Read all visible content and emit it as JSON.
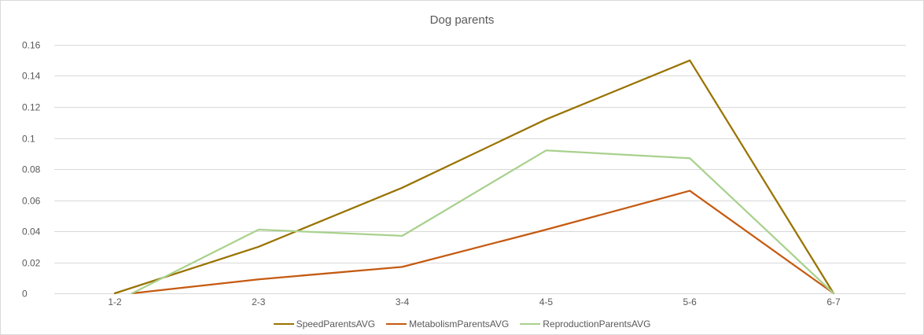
{
  "chart_data": {
    "type": "line",
    "title": "Dog parents",
    "xlabel": "",
    "ylabel": "",
    "categories": [
      "1-2",
      "2-3",
      "3-4",
      "4-5",
      "5-6",
      "6-7"
    ],
    "y_ticks": [
      "0",
      "0.02",
      "0.04",
      "0.06",
      "0.08",
      "0.1",
      "0.12",
      "0.14",
      "0.16"
    ],
    "ylim": [
      0,
      0.16
    ],
    "grid": true,
    "legend_position": "bottom",
    "series": [
      {
        "name": "SpeedParentsAVG",
        "color": "#997300",
        "x_positions": [
          0.0,
          1.0,
          2.0,
          3.0,
          4.0,
          5.0
        ],
        "values": [
          0,
          0.03,
          0.068,
          0.112,
          0.15,
          0
        ]
      },
      {
        "name": "MetabolismParentsAVG",
        "color": "#c55a11",
        "x_positions": [
          0.12,
          1.0,
          2.0,
          3.0,
          4.0,
          5.0
        ],
        "values": [
          0,
          0.009,
          0.017,
          0.041,
          0.066,
          0
        ]
      },
      {
        "name": "ReproductionParentsAVG",
        "color": "#a9d18e",
        "x_positions": [
          0.12,
          1.0,
          2.0,
          3.0,
          4.0,
          5.0
        ],
        "values": [
          0,
          0.041,
          0.037,
          0.092,
          0.087,
          0
        ]
      }
    ]
  }
}
